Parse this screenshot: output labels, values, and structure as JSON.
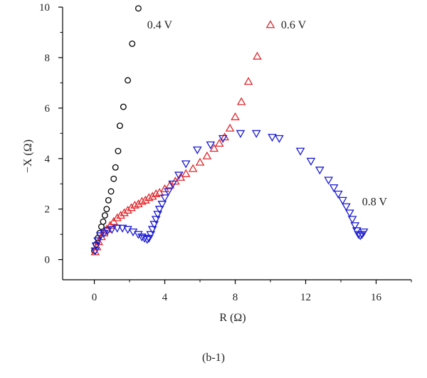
{
  "caption": "(b-1)",
  "chart_data": {
    "type": "scatter",
    "title": "",
    "xlabel": "R (Ω)",
    "ylabel": "−X (Ω)",
    "xlim": [
      -1.8,
      18.0
    ],
    "ylim": [
      -0.8,
      10.0
    ],
    "xticks": [
      0,
      4,
      8,
      12,
      16
    ],
    "yticks": [
      0,
      2,
      4,
      6,
      8,
      10
    ],
    "grid": false,
    "series": [
      {
        "name": "0.4 V",
        "marker": "circle",
        "color": "#000000",
        "points": [
          [
            0.0,
            0.35
          ],
          [
            0.1,
            0.6
          ],
          [
            0.2,
            0.85
          ],
          [
            0.3,
            1.05
          ],
          [
            0.4,
            1.3
          ],
          [
            0.5,
            1.5
          ],
          [
            0.6,
            1.75
          ],
          [
            0.7,
            2.0
          ],
          [
            0.8,
            2.35
          ],
          [
            0.95,
            2.7
          ],
          [
            1.1,
            3.2
          ],
          [
            1.2,
            3.65
          ],
          [
            1.35,
            4.3
          ],
          [
            1.45,
            5.3
          ],
          [
            1.65,
            6.05
          ],
          [
            1.9,
            7.1
          ],
          [
            2.15,
            8.55
          ],
          [
            2.5,
            9.95
          ]
        ]
      },
      {
        "name": "0.6 V",
        "marker": "triangle-up",
        "color": "#e0262a",
        "points": [
          [
            0.05,
            0.3
          ],
          [
            0.15,
            0.5
          ],
          [
            0.25,
            0.7
          ],
          [
            0.4,
            0.9
          ],
          [
            0.55,
            1.05
          ],
          [
            0.7,
            1.2
          ],
          [
            0.9,
            1.35
          ],
          [
            1.1,
            1.5
          ],
          [
            1.3,
            1.65
          ],
          [
            1.5,
            1.75
          ],
          [
            1.7,
            1.85
          ],
          [
            1.9,
            1.95
          ],
          [
            2.1,
            2.05
          ],
          [
            2.3,
            2.15
          ],
          [
            2.5,
            2.2
          ],
          [
            2.7,
            2.3
          ],
          [
            2.9,
            2.35
          ],
          [
            3.1,
            2.45
          ],
          [
            3.3,
            2.5
          ],
          [
            3.5,
            2.6
          ],
          [
            3.7,
            2.65
          ],
          [
            4.0,
            2.8
          ],
          [
            4.3,
            2.95
          ],
          [
            4.6,
            3.1
          ],
          [
            4.9,
            3.25
          ],
          [
            5.2,
            3.4
          ],
          [
            5.6,
            3.6
          ],
          [
            6.0,
            3.85
          ],
          [
            6.4,
            4.1
          ],
          [
            6.8,
            4.4
          ],
          [
            7.1,
            4.6
          ],
          [
            7.4,
            4.85
          ],
          [
            7.7,
            5.2
          ],
          [
            8.0,
            5.65
          ],
          [
            8.35,
            6.25
          ],
          [
            8.75,
            7.05
          ],
          [
            9.25,
            8.05
          ]
        ]
      },
      {
        "name": "0.8 V",
        "marker": "triangle-down",
        "color": "#1a1ad1",
        "points": [
          [
            0.05,
            0.35
          ],
          [
            0.1,
            0.55
          ],
          [
            0.2,
            0.75
          ],
          [
            0.35,
            0.95
          ],
          [
            0.55,
            1.05
          ],
          [
            0.75,
            1.15
          ],
          [
            1.0,
            1.2
          ],
          [
            1.3,
            1.25
          ],
          [
            1.6,
            1.25
          ],
          [
            1.9,
            1.2
          ],
          [
            2.2,
            1.1
          ],
          [
            2.5,
            1.0
          ],
          [
            2.7,
            0.9
          ],
          [
            2.85,
            0.85
          ],
          [
            3.0,
            0.8
          ],
          [
            3.1,
            0.85
          ],
          [
            3.2,
            1.0
          ],
          [
            3.3,
            1.2
          ],
          [
            3.4,
            1.4
          ],
          [
            3.5,
            1.6
          ],
          [
            3.6,
            1.8
          ],
          [
            3.7,
            2.0
          ],
          [
            3.85,
            2.2
          ],
          [
            4.0,
            2.45
          ],
          [
            4.2,
            2.7
          ],
          [
            4.45,
            3.0
          ],
          [
            4.8,
            3.35
          ],
          [
            5.2,
            3.8
          ],
          [
            5.85,
            4.35
          ],
          [
            6.6,
            4.55
          ],
          [
            7.3,
            4.8
          ],
          [
            8.3,
            5.0
          ],
          [
            9.2,
            5.0
          ],
          [
            10.1,
            4.85
          ],
          [
            10.5,
            4.8
          ],
          [
            11.7,
            4.3
          ],
          [
            12.3,
            3.9
          ],
          [
            12.8,
            3.55
          ],
          [
            13.3,
            3.15
          ],
          [
            13.6,
            2.85
          ],
          [
            13.85,
            2.6
          ],
          [
            14.1,
            2.35
          ],
          [
            14.3,
            2.1
          ],
          [
            14.5,
            1.85
          ],
          [
            14.65,
            1.6
          ],
          [
            14.8,
            1.35
          ],
          [
            14.9,
            1.15
          ],
          [
            15.0,
            1.0
          ],
          [
            15.1,
            0.95
          ],
          [
            15.2,
            1.0
          ],
          [
            15.3,
            1.1
          ]
        ]
      }
    ],
    "annotations": [
      {
        "text": "0.4 V",
        "x": 3.0,
        "y": 9.15
      },
      {
        "text": "0.6 V",
        "x": 10.6,
        "y": 9.15
      },
      {
        "text": "0.8 V",
        "x": 15.2,
        "y": 2.15
      }
    ]
  }
}
